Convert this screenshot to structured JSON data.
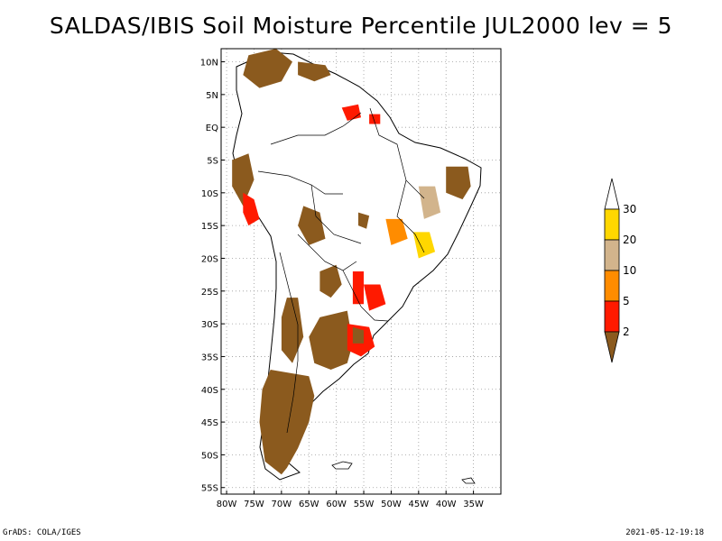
{
  "title": "SALDAS/IBIS Soil Moisture Percentile JUL2000 lev = 5",
  "footer": {
    "left": "GrADS: COLA/IGES",
    "right": "2021-05-12-19:18"
  },
  "map": {
    "lon_range": [
      -81,
      -30
    ],
    "lat_range": [
      -56,
      12
    ],
    "lon_ticks": [
      {
        "value": -80,
        "label": "80W"
      },
      {
        "value": -75,
        "label": "75W"
      },
      {
        "value": -70,
        "label": "70W"
      },
      {
        "value": -65,
        "label": "65W"
      },
      {
        "value": -60,
        "label": "60W"
      },
      {
        "value": -55,
        "label": "55W"
      },
      {
        "value": -50,
        "label": "50W"
      },
      {
        "value": -45,
        "label": "45W"
      },
      {
        "value": -40,
        "label": "40W"
      },
      {
        "value": -35,
        "label": "35W"
      }
    ],
    "lat_ticks": [
      {
        "value": 10,
        "label": "10N"
      },
      {
        "value": 5,
        "label": "5N"
      },
      {
        "value": 0,
        "label": "EQ"
      },
      {
        "value": -5,
        "label": "5S"
      },
      {
        "value": -10,
        "label": "10S"
      },
      {
        "value": -15,
        "label": "15S"
      },
      {
        "value": -20,
        "label": "20S"
      },
      {
        "value": -25,
        "label": "25S"
      },
      {
        "value": -30,
        "label": "30S"
      },
      {
        "value": -35,
        "label": "35S"
      },
      {
        "value": -40,
        "label": "40S"
      },
      {
        "value": -45,
        "label": "45S"
      },
      {
        "value": -50,
        "label": "50S"
      },
      {
        "value": -55,
        "label": "55S"
      }
    ],
    "grid": true,
    "colors": {
      "brown": "#8b5a1e",
      "red": "#ff1a00",
      "orange": "#ff8c00",
      "tan": "#d2b48c",
      "yellow": "#ffd700"
    },
    "regions": [
      {
        "name": "patagonia-dry",
        "color": "brown",
        "points": [
          [
            -72,
            -37
          ],
          [
            -65,
            -38
          ],
          [
            -64,
            -41
          ],
          [
            -65,
            -45
          ],
          [
            -67,
            -49
          ],
          [
            -69,
            -52
          ],
          [
            -70,
            -53
          ],
          [
            -73,
            -51
          ],
          [
            -74,
            -45
          ],
          [
            -73.5,
            -40
          ]
        ]
      },
      {
        "name": "pampas-dry",
        "color": "brown",
        "points": [
          [
            -63,
            -29
          ],
          [
            -58,
            -28
          ],
          [
            -57,
            -33
          ],
          [
            -58,
            -36
          ],
          [
            -61,
            -37
          ],
          [
            -64,
            -36
          ],
          [
            -65,
            -32
          ]
        ]
      },
      {
        "name": "andes-central",
        "color": "brown",
        "points": [
          [
            -69,
            -26
          ],
          [
            -67,
            -26
          ],
          [
            -66,
            -32
          ],
          [
            -68,
            -36
          ],
          [
            -70,
            -34
          ],
          [
            -70,
            -29
          ]
        ]
      },
      {
        "name": "chaco-dry",
        "color": "brown",
        "points": [
          [
            -63,
            -22
          ],
          [
            -60,
            -21
          ],
          [
            -59,
            -24
          ],
          [
            -61,
            -26
          ],
          [
            -63,
            -25
          ]
        ]
      },
      {
        "name": "bolivia-dry",
        "color": "brown",
        "points": [
          [
            -66,
            -12
          ],
          [
            -63,
            -13
          ],
          [
            -62,
            -17
          ],
          [
            -65,
            -18
          ],
          [
            -67,
            -15
          ]
        ]
      },
      {
        "name": "mato-grosso-dry",
        "color": "brown",
        "points": [
          [
            -56,
            -13
          ],
          [
            -54,
            -13.5
          ],
          [
            -54.5,
            -15.5
          ],
          [
            -56,
            -15
          ]
        ]
      },
      {
        "name": "uruguay-red",
        "color": "red",
        "points": [
          [
            -58,
            -30
          ],
          [
            -54,
            -30.5
          ],
          [
            -53,
            -33.5
          ],
          [
            -55.5,
            -35
          ],
          [
            -58,
            -34
          ]
        ]
      },
      {
        "name": "uruguay-dry",
        "color": "brown",
        "points": [
          [
            -57,
            -30.5
          ],
          [
            -55,
            -31
          ],
          [
            -55,
            -33
          ],
          [
            -57,
            -33
          ]
        ]
      },
      {
        "name": "ne-brazil-dry",
        "color": "brown",
        "points": [
          [
            -40,
            -6
          ],
          [
            -36,
            -6
          ],
          [
            -35.5,
            -9
          ],
          [
            -37,
            -11
          ],
          [
            -40,
            -10
          ]
        ]
      },
      {
        "name": "colombia-dry",
        "color": "brown",
        "points": [
          [
            -76,
            11
          ],
          [
            -71,
            12
          ],
          [
            -68,
            10
          ],
          [
            -70,
            7
          ],
          [
            -74,
            6
          ],
          [
            -77,
            8
          ]
        ]
      },
      {
        "name": "venezuela-dry",
        "color": "brown",
        "points": [
          [
            -67,
            10
          ],
          [
            -62,
            9.5
          ],
          [
            -61,
            8
          ],
          [
            -64,
            7
          ],
          [
            -67,
            8
          ]
        ]
      },
      {
        "name": "peru-dry",
        "color": "brown",
        "points": [
          [
            -79,
            -5
          ],
          [
            -76,
            -4
          ],
          [
            -75,
            -8
          ],
          [
            -77,
            -12
          ],
          [
            -79,
            -9
          ]
        ]
      },
      {
        "name": "peru-red",
        "color": "red",
        "points": [
          [
            -77,
            -10
          ],
          [
            -75,
            -11
          ],
          [
            -74,
            -14
          ],
          [
            -76,
            -15
          ],
          [
            -77,
            -13
          ]
        ]
      },
      {
        "name": "paraguay-red",
        "color": "red",
        "points": [
          [
            -57,
            -22
          ],
          [
            -55,
            -22
          ],
          [
            -55,
            -27
          ],
          [
            -57,
            -27
          ]
        ]
      },
      {
        "name": "brazil-south-red",
        "color": "red",
        "points": [
          [
            -55,
            -24
          ],
          [
            -52,
            -24
          ],
          [
            -51,
            -27
          ],
          [
            -54,
            -28
          ]
        ]
      },
      {
        "name": "goias-orange",
        "color": "orange",
        "points": [
          [
            -51,
            -14
          ],
          [
            -48,
            -14
          ],
          [
            -47,
            -17
          ],
          [
            -50,
            -18
          ]
        ]
      },
      {
        "name": "bahia-tan",
        "color": "tan",
        "points": [
          [
            -45,
            -9
          ],
          [
            -42,
            -9
          ],
          [
            -41,
            -13
          ],
          [
            -44,
            -14
          ]
        ]
      },
      {
        "name": "minas-yellow",
        "color": "yellow",
        "points": [
          [
            -46,
            -16
          ],
          [
            -43,
            -16
          ],
          [
            -42,
            -19
          ],
          [
            -45,
            -20
          ]
        ]
      },
      {
        "name": "guyana-red",
        "color": "red",
        "points": [
          [
            -59,
            3
          ],
          [
            -56,
            3.5
          ],
          [
            -55.5,
            1.5
          ],
          [
            -58,
            1
          ]
        ]
      },
      {
        "name": "amazon-red",
        "color": "red",
        "points": [
          [
            -54,
            2
          ],
          [
            -52,
            2
          ],
          [
            -52,
            0.5
          ],
          [
            -54,
            0.5
          ]
        ]
      }
    ]
  },
  "colorbar": {
    "labels": [
      "2",
      "5",
      "10",
      "20",
      "30"
    ],
    "segments": [
      {
        "name": "below-2",
        "color": "#8b5a1e"
      },
      {
        "name": "2-5",
        "color": "#ff1a00"
      },
      {
        "name": "5-10",
        "color": "#ff8c00"
      },
      {
        "name": "10-20",
        "color": "#d2b48c"
      },
      {
        "name": "20-30",
        "color": "#ffd700"
      },
      {
        "name": "above-30",
        "color": "#ffffff"
      }
    ]
  }
}
